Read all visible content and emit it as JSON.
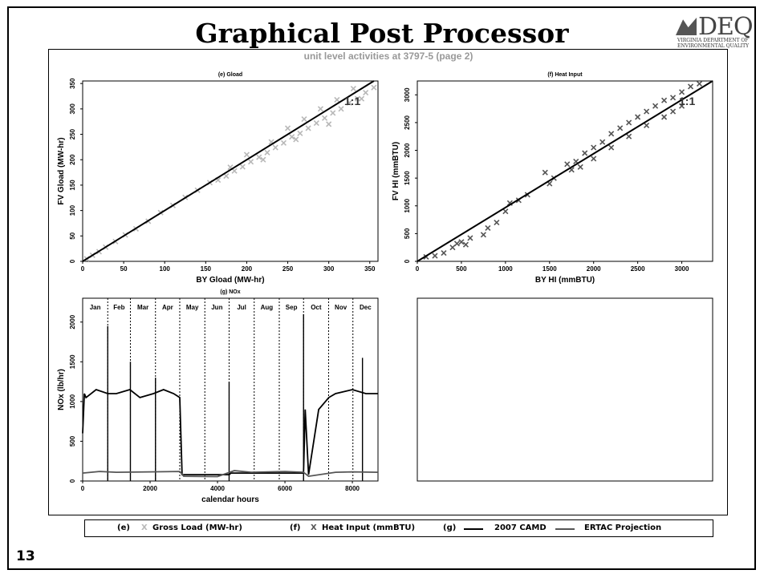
{
  "slide": {
    "title": "Graphical Post Processor",
    "slide_number": "13",
    "logo": {
      "mark_text": "DEQ",
      "subtext": "VIRGINIA DEPARTMENT OF ENVIRONMENTAL QUALITY"
    },
    "figure_heading": "unit level activities at  3797-5  (page 2)"
  },
  "legend": {
    "e_tag": "(e)",
    "e_marker": "X",
    "e_label": "Gross Load (MW-hr)",
    "f_tag": "(f)",
    "f_marker": "X",
    "f_label": "Heat Input (mmBTU)",
    "g_tag": "(g)",
    "g_label_1": "2007 CAMD",
    "g_label_2": "ERTAC Projection",
    "colors": {
      "gross_load": "#b8b8b8",
      "heat_input": "#555555"
    }
  },
  "chart_data": [
    {
      "id": "e",
      "type": "scatter",
      "title": "(e) Gload",
      "xlabel": "BY Gload (MW-hr)",
      "ylabel": "FV Gload (MW-hr)",
      "xlim": [
        0,
        360
      ],
      "ylim": [
        0,
        355
      ],
      "xticks": [
        0,
        50,
        100,
        150,
        200,
        250,
        300,
        350
      ],
      "yticks": [
        0,
        50,
        100,
        150,
        200,
        250,
        300,
        350
      ],
      "series": [
        {
          "marker": "x",
          "color": "#b8b8b8",
          "points": [
            [
              5,
              5
            ],
            [
              12,
              12
            ],
            [
              20,
              19
            ],
            [
              28,
              28
            ],
            [
              40,
              39
            ],
            [
              52,
              52
            ],
            [
              65,
              64
            ],
            [
              80,
              79
            ],
            [
              95,
              96
            ],
            [
              110,
              110
            ],
            [
              125,
              126
            ],
            [
              140,
              140
            ],
            [
              155,
              155
            ],
            [
              165,
              160
            ],
            [
              175,
              168
            ],
            [
              185,
              178
            ],
            [
              195,
              186
            ],
            [
              205,
              196
            ],
            [
              215,
              205
            ],
            [
              225,
              214
            ],
            [
              235,
              224
            ],
            [
              245,
              233
            ],
            [
              255,
              245
            ],
            [
              265,
              252
            ],
            [
              275,
              262
            ],
            [
              285,
              272
            ],
            [
              295,
              282
            ],
            [
              305,
              292
            ],
            [
              315,
              300
            ],
            [
              325,
              312
            ],
            [
              335,
              320
            ],
            [
              345,
              332
            ],
            [
              355,
              342
            ],
            [
              180,
              185
            ],
            [
              200,
              210
            ],
            [
              230,
              235
            ],
            [
              250,
              262
            ],
            [
              270,
              280
            ],
            [
              290,
              300
            ],
            [
              310,
              318
            ],
            [
              330,
              340
            ],
            [
              220,
              200
            ],
            [
              260,
              240
            ],
            [
              300,
              270
            ],
            [
              340,
              320
            ]
          ]
        }
      ],
      "reference_line": {
        "label": "1:1",
        "from": [
          0,
          0
        ],
        "to": [
          355,
          355
        ]
      }
    },
    {
      "id": "f",
      "type": "scatter",
      "title": "(f) Heat Input",
      "xlabel": "BY HI (mmBTU)",
      "ylabel": "FV HI (mmBTU)",
      "xlim": [
        0,
        3350
      ],
      "ylim": [
        0,
        3250
      ],
      "xticks": [
        0,
        500,
        1000,
        1500,
        2000,
        2500,
        3000
      ],
      "yticks": [
        0,
        500,
        1000,
        1500,
        2000,
        2500,
        3000
      ],
      "series": [
        {
          "marker": "x",
          "color": "#555555",
          "points": [
            [
              100,
              80
            ],
            [
              200,
              100
            ],
            [
              300,
              150
            ],
            [
              400,
              250
            ],
            [
              450,
              320
            ],
            [
              500,
              350
            ],
            [
              550,
              300
            ],
            [
              600,
              420
            ],
            [
              750,
              480
            ],
            [
              800,
              600
            ],
            [
              900,
              700
            ],
            [
              1000,
              900
            ],
            [
              1050,
              1050
            ],
            [
              1150,
              1100
            ],
            [
              1250,
              1200
            ],
            [
              1450,
              1600
            ],
            [
              1500,
              1400
            ],
            [
              1550,
              1500
            ],
            [
              1700,
              1750
            ],
            [
              1800,
              1800
            ],
            [
              1900,
              1950
            ],
            [
              2000,
              2050
            ],
            [
              2100,
              2150
            ],
            [
              2200,
              2300
            ],
            [
              2300,
              2400
            ],
            [
              2400,
              2500
            ],
            [
              2500,
              2600
            ],
            [
              2600,
              2700
            ],
            [
              2700,
              2800
            ],
            [
              2800,
              2900
            ],
            [
              2900,
              2950
            ],
            [
              3000,
              3050
            ],
            [
              3100,
              3150
            ],
            [
              3200,
              3200
            ],
            [
              1750,
              1650
            ],
            [
              1850,
              1700
            ],
            [
              2000,
              1850
            ],
            [
              2200,
              2050
            ],
            [
              2400,
              2250
            ],
            [
              2600,
              2450
            ],
            [
              2800,
              2600
            ],
            [
              3000,
              2800
            ],
            [
              2900,
              2700
            ]
          ]
        }
      ],
      "reference_line": {
        "label": "1:1",
        "from": [
          0,
          0
        ],
        "to": [
          3350,
          3250
        ]
      }
    },
    {
      "id": "g",
      "type": "line",
      "title": "(g) NOx",
      "xlabel": "calendar hours",
      "ylabel": "NOx (lb/hr)",
      "xlim": [
        0,
        8760
      ],
      "ylim": [
        0,
        2300
      ],
      "xticks": [
        0,
        2000,
        4000,
        6000,
        8000
      ],
      "yticks": [
        0,
        500,
        1000,
        1500,
        2000
      ],
      "months": [
        "Jan",
        "Feb",
        "Mar",
        "Apr",
        "May",
        "Jun",
        "Jul",
        "Aug",
        "Sep",
        "Oct",
        "Nov",
        "Dec"
      ],
      "month_boundaries": [
        744,
        1416,
        2160,
        2880,
        3624,
        4344,
        5088,
        5832,
        6552,
        7296,
        8016
      ],
      "series": [
        {
          "name": "2007 CAMD",
          "color": "#000000",
          "x": [
            0,
            50,
            100,
            400,
            744,
            1000,
            1400,
            1700,
            2100,
            2400,
            2700,
            2880,
            2950,
            4344,
            4400,
            6552,
            6600,
            6700,
            7000,
            7300,
            7500,
            8000,
            8400,
            8760
          ],
          "y": [
            600,
            1100,
            1050,
            1150,
            1100,
            1100,
            1150,
            1050,
            1100,
            1150,
            1100,
            1050,
            80,
            80,
            100,
            100,
            900,
            80,
            900,
            1050,
            1100,
            1150,
            1100,
            1100
          ]
        },
        {
          "name": "ERTAC Projection",
          "color": "#555555",
          "x": [
            0,
            500,
            1000,
            2000,
            2880,
            3000,
            4000,
            4500,
            5000,
            6000,
            6552,
            6700,
            7500,
            8000,
            8760
          ],
          "y": [
            100,
            120,
            110,
            115,
            120,
            60,
            55,
            130,
            110,
            120,
            110,
            60,
            110,
            115,
            110
          ]
        }
      ],
      "spikes": [
        [
          744,
          1950
        ],
        [
          1416,
          1500
        ],
        [
          2160,
          1300
        ],
        [
          4344,
          1250
        ],
        [
          6552,
          2100
        ],
        [
          8300,
          1550
        ]
      ]
    },
    {
      "id": "h",
      "type": "scatter",
      "title": "",
      "series": []
    }
  ]
}
